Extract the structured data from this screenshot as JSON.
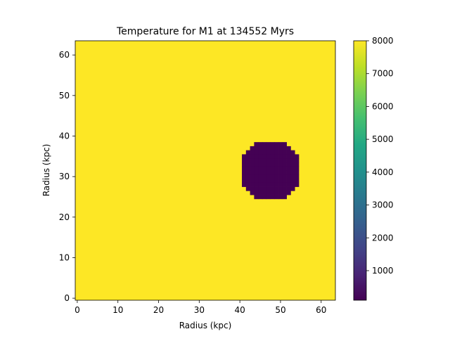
{
  "chart_data": {
    "type": "heatmap",
    "title": "Temperature for M1 at 134552 Myrs",
    "xlabel": "Radius (kpc)",
    "ylabel": "Radius (kpc)",
    "grid": false,
    "x_ticks": [
      "0",
      "10",
      "20",
      "30",
      "40",
      "50",
      "60"
    ],
    "y_ticks": [
      "0",
      "10",
      "20",
      "30",
      "40",
      "50",
      "60"
    ],
    "xlim": [
      -0.5,
      63.5
    ],
    "ylim": [
      63.5,
      -0.5
    ],
    "y_inverted": true,
    "grid_size": [
      64,
      64
    ],
    "colormap": "viridis",
    "background_value": 8000,
    "region": {
      "shape": "disk",
      "center_x": 47.5,
      "center_y": 31.5,
      "radius": 7.5,
      "value": 100
    },
    "colorbar": {
      "min": 100,
      "max": 8000,
      "ticks": [
        "1000",
        "2000",
        "3000",
        "4000",
        "5000",
        "6000",
        "7000",
        "8000"
      ]
    },
    "colors": {
      "high": "#fde725",
      "low": "#440154"
    }
  }
}
